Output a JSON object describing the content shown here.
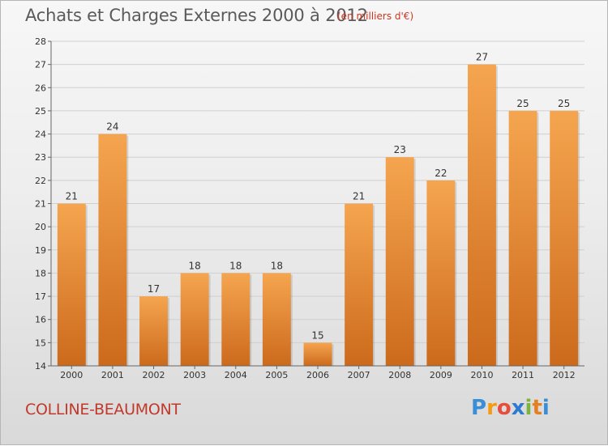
{
  "chart_data": {
    "type": "bar",
    "title": "Achats et Charges Externes 2000 à 2012",
    "subtitle": "(en milliers d'€)",
    "categories": [
      "2000",
      "2001",
      "2002",
      "2003",
      "2004",
      "2005",
      "2006",
      "2007",
      "2008",
      "2009",
      "2010",
      "2011",
      "2012"
    ],
    "values": [
      21,
      24,
      17,
      18,
      18,
      18,
      15,
      21,
      23,
      22,
      27,
      25,
      25
    ],
    "ylim": [
      14,
      28
    ],
    "yticks": [
      14,
      15,
      16,
      17,
      18,
      19,
      20,
      21,
      22,
      23,
      24,
      25,
      26,
      27,
      28
    ],
    "grid": true,
    "bar_color_top": "#f5a54f",
    "bar_color_bottom": "#cc6a1c"
  },
  "location_name": "COLLINE-BEAUMONT",
  "logo": {
    "text": "Proxiti",
    "letters": [
      "P",
      "r",
      "o",
      "x",
      "i",
      "t",
      "i"
    ],
    "colors": [
      "#3a8ed6",
      "#f39c12",
      "#e74c3c",
      "#2c7bd0",
      "#7cb342",
      "#e67e22",
      "#3a8ed6"
    ]
  }
}
